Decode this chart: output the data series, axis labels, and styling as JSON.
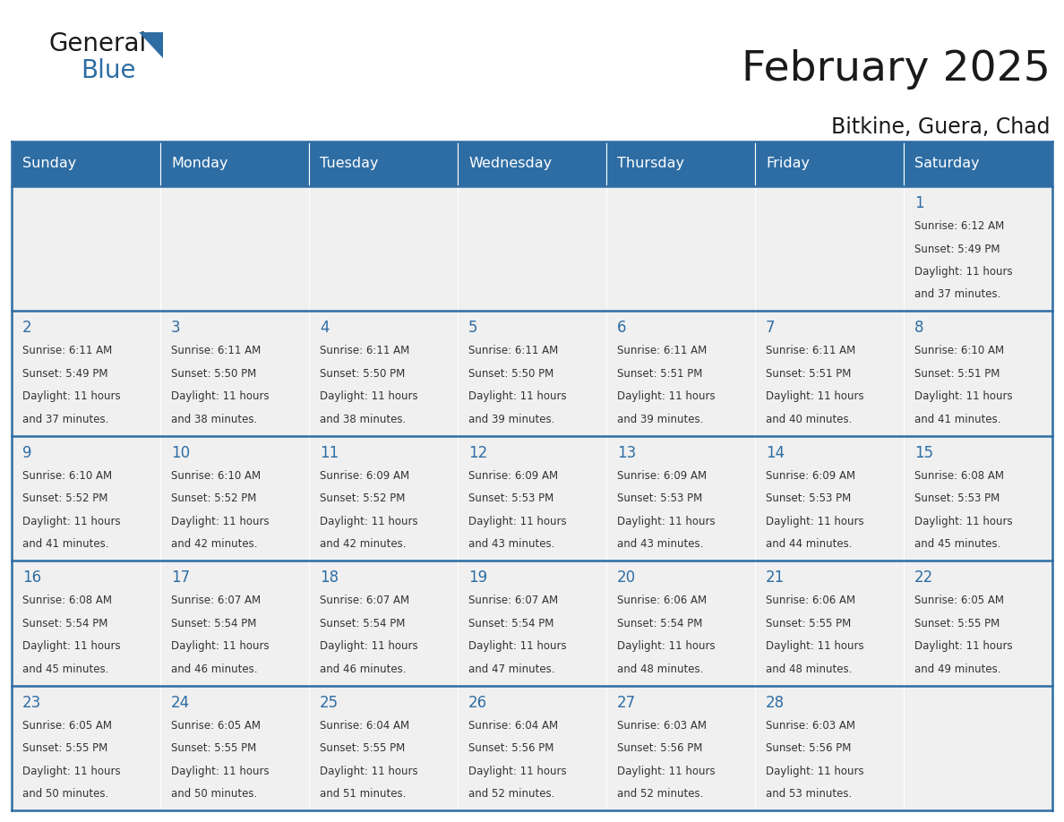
{
  "title": "February 2025",
  "subtitle": "Bitkine, Guera, Chad",
  "header_bg": "#2E6DA4",
  "header_text": "#FFFFFF",
  "cell_bg": "#F0F0F0",
  "border_color": "#2E6DA4",
  "text_color": "#333333",
  "day_num_color": "#2E6DA4",
  "days_of_week": [
    "Sunday",
    "Monday",
    "Tuesday",
    "Wednesday",
    "Thursday",
    "Friday",
    "Saturday"
  ],
  "weeks": [
    [
      {
        "day": "",
        "info": ""
      },
      {
        "day": "",
        "info": ""
      },
      {
        "day": "",
        "info": ""
      },
      {
        "day": "",
        "info": ""
      },
      {
        "day": "",
        "info": ""
      },
      {
        "day": "",
        "info": ""
      },
      {
        "day": "1",
        "info": "Sunrise: 6:12 AM\nSunset: 5:49 PM\nDaylight: 11 hours\nand 37 minutes."
      }
    ],
    [
      {
        "day": "2",
        "info": "Sunrise: 6:11 AM\nSunset: 5:49 PM\nDaylight: 11 hours\nand 37 minutes."
      },
      {
        "day": "3",
        "info": "Sunrise: 6:11 AM\nSunset: 5:50 PM\nDaylight: 11 hours\nand 38 minutes."
      },
      {
        "day": "4",
        "info": "Sunrise: 6:11 AM\nSunset: 5:50 PM\nDaylight: 11 hours\nand 38 minutes."
      },
      {
        "day": "5",
        "info": "Sunrise: 6:11 AM\nSunset: 5:50 PM\nDaylight: 11 hours\nand 39 minutes."
      },
      {
        "day": "6",
        "info": "Sunrise: 6:11 AM\nSunset: 5:51 PM\nDaylight: 11 hours\nand 39 minutes."
      },
      {
        "day": "7",
        "info": "Sunrise: 6:11 AM\nSunset: 5:51 PM\nDaylight: 11 hours\nand 40 minutes."
      },
      {
        "day": "8",
        "info": "Sunrise: 6:10 AM\nSunset: 5:51 PM\nDaylight: 11 hours\nand 41 minutes."
      }
    ],
    [
      {
        "day": "9",
        "info": "Sunrise: 6:10 AM\nSunset: 5:52 PM\nDaylight: 11 hours\nand 41 minutes."
      },
      {
        "day": "10",
        "info": "Sunrise: 6:10 AM\nSunset: 5:52 PM\nDaylight: 11 hours\nand 42 minutes."
      },
      {
        "day": "11",
        "info": "Sunrise: 6:09 AM\nSunset: 5:52 PM\nDaylight: 11 hours\nand 42 minutes."
      },
      {
        "day": "12",
        "info": "Sunrise: 6:09 AM\nSunset: 5:53 PM\nDaylight: 11 hours\nand 43 minutes."
      },
      {
        "day": "13",
        "info": "Sunrise: 6:09 AM\nSunset: 5:53 PM\nDaylight: 11 hours\nand 43 minutes."
      },
      {
        "day": "14",
        "info": "Sunrise: 6:09 AM\nSunset: 5:53 PM\nDaylight: 11 hours\nand 44 minutes."
      },
      {
        "day": "15",
        "info": "Sunrise: 6:08 AM\nSunset: 5:53 PM\nDaylight: 11 hours\nand 45 minutes."
      }
    ],
    [
      {
        "day": "16",
        "info": "Sunrise: 6:08 AM\nSunset: 5:54 PM\nDaylight: 11 hours\nand 45 minutes."
      },
      {
        "day": "17",
        "info": "Sunrise: 6:07 AM\nSunset: 5:54 PM\nDaylight: 11 hours\nand 46 minutes."
      },
      {
        "day": "18",
        "info": "Sunrise: 6:07 AM\nSunset: 5:54 PM\nDaylight: 11 hours\nand 46 minutes."
      },
      {
        "day": "19",
        "info": "Sunrise: 6:07 AM\nSunset: 5:54 PM\nDaylight: 11 hours\nand 47 minutes."
      },
      {
        "day": "20",
        "info": "Sunrise: 6:06 AM\nSunset: 5:54 PM\nDaylight: 11 hours\nand 48 minutes."
      },
      {
        "day": "21",
        "info": "Sunrise: 6:06 AM\nSunset: 5:55 PM\nDaylight: 11 hours\nand 48 minutes."
      },
      {
        "day": "22",
        "info": "Sunrise: 6:05 AM\nSunset: 5:55 PM\nDaylight: 11 hours\nand 49 minutes."
      }
    ],
    [
      {
        "day": "23",
        "info": "Sunrise: 6:05 AM\nSunset: 5:55 PM\nDaylight: 11 hours\nand 50 minutes."
      },
      {
        "day": "24",
        "info": "Sunrise: 6:05 AM\nSunset: 5:55 PM\nDaylight: 11 hours\nand 50 minutes."
      },
      {
        "day": "25",
        "info": "Sunrise: 6:04 AM\nSunset: 5:55 PM\nDaylight: 11 hours\nand 51 minutes."
      },
      {
        "day": "26",
        "info": "Sunrise: 6:04 AM\nSunset: 5:56 PM\nDaylight: 11 hours\nand 52 minutes."
      },
      {
        "day": "27",
        "info": "Sunrise: 6:03 AM\nSunset: 5:56 PM\nDaylight: 11 hours\nand 52 minutes."
      },
      {
        "day": "28",
        "info": "Sunrise: 6:03 AM\nSunset: 5:56 PM\nDaylight: 11 hours\nand 53 minutes."
      },
      {
        "day": "",
        "info": ""
      }
    ]
  ],
  "logo_general_color": "#1a1a1a",
  "logo_blue_color": "#2E6DA4",
  "logo_triangle_color": "#2E6DA4",
  "title_color": "#1a1a1a",
  "subtitle_color": "#1a1a1a"
}
